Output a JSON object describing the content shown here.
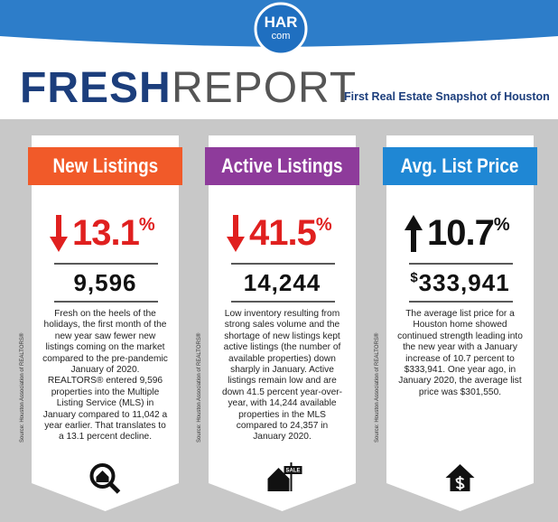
{
  "logo": {
    "top": "HAR",
    "bottom": "com"
  },
  "header": {
    "title_bold": "FRESH",
    "title_light": "REPORT",
    "subtitle": "First Real Estate Snapshot of Houston"
  },
  "cards": [
    {
      "title": "New Listings",
      "direction": "down",
      "change": "13.1",
      "unit": "%",
      "currency": "",
      "figure": "9,596",
      "text": "Fresh on the heels of the holidays, the first month of the new year saw fewer new listings coming on the market compared to the pre-pandemic January of 2020.  REALTORS® entered 9,596 properties into the Multiple Listing Service (MLS) in January compared to 11,042 a year earlier. That translates to a 13.1 percent decline.",
      "source": "Source: Houston Association of REALTORS®",
      "icon": "search",
      "color": "#f15a29",
      "change_color": "#e0201f"
    },
    {
      "title": "Active Listings",
      "direction": "down",
      "change": "41.5",
      "unit": "%",
      "currency": "",
      "figure": "14,244",
      "text": "Low inventory resulting from strong sales volume and the shortage of new listings kept active listings (the number of available properties) down sharply in January. Active listings remain low and are down 41.5 percent year-over-year, with 14,244 available properties in the MLS compared to 24,357 in January 2020.",
      "source": "Source: Houston Association of REALTORS®",
      "icon": "sale",
      "sign": "SALE",
      "color": "#8e3b9b",
      "change_color": "#e0201f"
    },
    {
      "title": "Avg. List Price",
      "direction": "up",
      "change": "10.7",
      "unit": "%",
      "currency": "$",
      "figure": "333,941",
      "text": "The average list price for a Houston home showed continued strength leading into the new year with a January increase of 10.7 percent to $333,941. One year ago, in January 2020, the average list price was $301,550.",
      "source": "Source: Houston Association of REALTORS®",
      "icon": "dollar",
      "color": "#1f87d4",
      "change_color": "#111111"
    }
  ]
}
